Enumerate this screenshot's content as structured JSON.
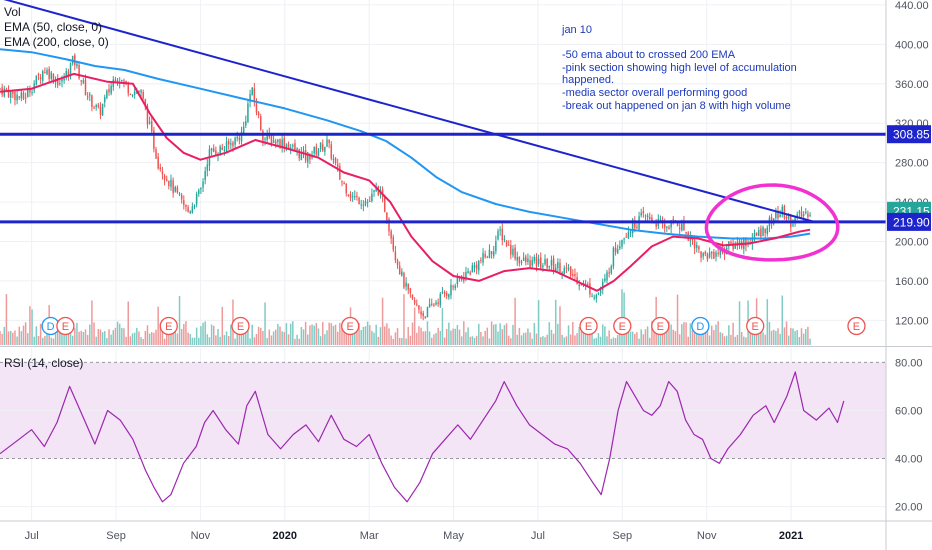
{
  "chart_data": [
    {
      "type": "line",
      "panel": "price",
      "legend": [
        "Vol",
        "EMA (50, close, 0)",
        "EMA (200, close, 0)"
      ],
      "y_ticks": [
        120,
        160,
        200,
        240,
        280,
        320,
        360,
        400,
        440
      ],
      "ylim": [
        95,
        445
      ],
      "x_tick_labels": [
        "Jul",
        "Sep",
        "Nov",
        "2020",
        "Mar",
        "May",
        "Jul",
        "Sep",
        "Nov",
        "2021"
      ],
      "x_tick_months": [
        0,
        2,
        4,
        6,
        8,
        10,
        12,
        14,
        16,
        18
      ],
      "x_tick_bold": [
        false,
        false,
        false,
        true,
        false,
        false,
        false,
        false,
        false,
        true
      ],
      "xlim_months": [
        -0.75,
        20.25
      ],
      "price_labels": [
        {
          "text": "308.85",
          "value": 308.85,
          "color": "#1d24cc"
        },
        {
          "text": "231.15",
          "value": 231.15,
          "color": "#26a69a"
        },
        {
          "text": "219.90",
          "value": 219.9,
          "color": "#1d24cc"
        }
      ],
      "horizontal_lines": [
        {
          "value": 308.85,
          "color": "#1d24cc"
        },
        {
          "value": 219.9,
          "color": "#1d24cc"
        }
      ],
      "trend_line": {
        "from": [
          -0.75,
          447
        ],
        "to": [
          18.55,
          219.9
        ],
        "color": "#1d24cc"
      },
      "series": [
        {
          "type": "candlestick",
          "up_color": "#26a69a",
          "down_color": "#ef5350",
          "close_anchors": [
            [
              -0.75,
              355
            ],
            [
              -0.2,
              345
            ],
            [
              0.3,
              375
            ],
            [
              0.7,
              360
            ],
            [
              1.0,
              385
            ],
            [
              1.3,
              350
            ],
            [
              1.6,
              330
            ],
            [
              2.0,
              370
            ],
            [
              2.3,
              355
            ],
            [
              2.6,
              350
            ],
            [
              3.0,
              280
            ],
            [
              3.4,
              250
            ],
            [
              3.7,
              230
            ],
            [
              4.0,
              250
            ],
            [
              4.2,
              290
            ],
            [
              4.6,
              295
            ],
            [
              5.0,
              310
            ],
            [
              5.2,
              355
            ],
            [
              5.5,
              305
            ],
            [
              6.0,
              300
            ],
            [
              6.5,
              285
            ],
            [
              7.0,
              300
            ],
            [
              7.3,
              265
            ],
            [
              7.6,
              245
            ],
            [
              8.0,
              240
            ],
            [
              8.2,
              255
            ],
            [
              8.4,
              230
            ],
            [
              8.6,
              190
            ],
            [
              8.8,
              160
            ],
            [
              9.0,
              140
            ],
            [
              9.3,
              125
            ],
            [
              9.6,
              140
            ],
            [
              10.0,
              155
            ],
            [
              10.5,
              175
            ],
            [
              10.9,
              190
            ],
            [
              11.1,
              210
            ],
            [
              11.3,
              195
            ],
            [
              11.6,
              180
            ],
            [
              12.0,
              178
            ],
            [
              12.5,
              175
            ],
            [
              13.0,
              160
            ],
            [
              13.4,
              145
            ],
            [
              13.6,
              160
            ],
            [
              13.8,
              190
            ],
            [
              14.0,
              205
            ],
            [
              14.2,
              215
            ],
            [
              14.5,
              225
            ],
            [
              14.7,
              222
            ],
            [
              15.0,
              215
            ],
            [
              15.3,
              220
            ],
            [
              15.6,
              205
            ],
            [
              15.9,
              185
            ],
            [
              16.3,
              190
            ],
            [
              16.7,
              198
            ],
            [
              17.0,
              200
            ],
            [
              17.3,
              210
            ],
            [
              17.6,
              225
            ],
            [
              17.8,
              230
            ],
            [
              18.0,
              220
            ],
            [
              18.2,
              225
            ],
            [
              18.45,
              231.15
            ]
          ]
        },
        {
          "name": "EMA (50, close, 0)",
          "color": "#e91e63",
          "points": [
            [
              -0.75,
              352
            ],
            [
              0,
              355
            ],
            [
              1.0,
              370
            ],
            [
              1.8,
              362
            ],
            [
              2.4,
              360
            ],
            [
              2.8,
              330
            ],
            [
              3.2,
              305
            ],
            [
              3.6,
              290
            ],
            [
              4.0,
              283
            ],
            [
              4.6,
              290
            ],
            [
              5.3,
              303
            ],
            [
              6.0,
              295
            ],
            [
              6.8,
              285
            ],
            [
              7.4,
              270
            ],
            [
              8.0,
              262
            ],
            [
              8.5,
              240
            ],
            [
              9.0,
              205
            ],
            [
              9.5,
              180
            ],
            [
              10.0,
              165
            ],
            [
              10.6,
              160
            ],
            [
              11.2,
              170
            ],
            [
              11.8,
              173
            ],
            [
              12.4,
              170
            ],
            [
              13.0,
              158
            ],
            [
              13.4,
              150
            ],
            [
              13.8,
              160
            ],
            [
              14.2,
              175
            ],
            [
              14.7,
              195
            ],
            [
              15.2,
              205
            ],
            [
              15.8,
              203
            ],
            [
              16.4,
              196
            ],
            [
              17.0,
              198
            ],
            [
              17.6,
              203
            ],
            [
              18.2,
              210
            ],
            [
              18.45,
              212
            ]
          ]
        },
        {
          "name": "EMA (200, close, 0)",
          "color": "#2196f3",
          "points": [
            [
              -0.75,
              395
            ],
            [
              0,
              392
            ],
            [
              0.8,
              385
            ],
            [
              1.5,
              378
            ],
            [
              2.2,
              374
            ],
            [
              3.0,
              365
            ],
            [
              4.0,
              355
            ],
            [
              5.0,
              345
            ],
            [
              6.0,
              335
            ],
            [
              7.0,
              323
            ],
            [
              7.8,
              312
            ],
            [
              8.4,
              302
            ],
            [
              9.0,
              285
            ],
            [
              9.6,
              265
            ],
            [
              10.2,
              250
            ],
            [
              11.0,
              238
            ],
            [
              11.8,
              230
            ],
            [
              12.6,
              224
            ],
            [
              13.4,
              218
            ],
            [
              14.2,
              212
            ],
            [
              15.0,
              208
            ],
            [
              15.8,
              205
            ],
            [
              16.6,
              203
            ],
            [
              17.4,
              203
            ],
            [
              18.0,
              205
            ],
            [
              18.45,
              208
            ]
          ]
        }
      ],
      "volume_bars": {
        "colors": [
          "#ef9a9a",
          "#80cbc4"
        ],
        "seed": 7,
        "floor_value": 95
      },
      "event_badges": [
        {
          "text": "D",
          "month": 0.45,
          "color": "#2196f3"
        },
        {
          "text": "E",
          "month": 0.8,
          "color": "#ef5350"
        },
        {
          "text": "E",
          "month": 3.25,
          "color": "#ef5350"
        },
        {
          "text": "E",
          "month": 4.95,
          "color": "#ef5350"
        },
        {
          "text": "E",
          "month": 7.55,
          "color": "#ef5350"
        },
        {
          "text": "E",
          "month": 13.2,
          "color": "#ef5350"
        },
        {
          "text": "E",
          "month": 14.0,
          "color": "#ef5350"
        },
        {
          "text": "E",
          "month": 14.9,
          "color": "#ef5350"
        },
        {
          "text": "D",
          "month": 15.85,
          "color": "#2196f3"
        },
        {
          "text": "E",
          "month": 17.15,
          "color": "#ef5350"
        },
        {
          "text": "E",
          "month": 19.55,
          "color": "#ef5350"
        }
      ],
      "highlight_ellipse": {
        "center": [
          17.55,
          218
        ],
        "radius_months": 1.55,
        "radius_value": 38,
        "color": "#f032d0"
      }
    },
    {
      "type": "line",
      "panel": "rsi",
      "legend": "RSI (14, close)",
      "y_ticks": [
        20,
        40,
        60,
        80
      ],
      "y_tick_labels": [
        "20.00",
        "40.00",
        "60.00",
        "80.00"
      ],
      "ylim": [
        14,
        86
      ],
      "band": [
        40,
        80
      ],
      "band_color": "#f3e5f5",
      "series": [
        {
          "name": "RSI (14, close)",
          "color": "#9c27b0",
          "points": [
            [
              -0.75,
              42
            ],
            [
              -0.3,
              48
            ],
            [
              0,
              52
            ],
            [
              0.3,
              45
            ],
            [
              0.6,
              55
            ],
            [
              0.9,
              70
            ],
            [
              1.2,
              58
            ],
            [
              1.5,
              46
            ],
            [
              1.8,
              60
            ],
            [
              2.1,
              56
            ],
            [
              2.4,
              48
            ],
            [
              2.7,
              35
            ],
            [
              2.9,
              28
            ],
            [
              3.1,
              22
            ],
            [
              3.3,
              25
            ],
            [
              3.6,
              38
            ],
            [
              3.9,
              45
            ],
            [
              4.1,
              55
            ],
            [
              4.3,
              60
            ],
            [
              4.6,
              52
            ],
            [
              4.9,
              46
            ],
            [
              5.1,
              62
            ],
            [
              5.3,
              68
            ],
            [
              5.6,
              50
            ],
            [
              5.9,
              44
            ],
            [
              6.2,
              50
            ],
            [
              6.5,
              54
            ],
            [
              6.8,
              47
            ],
            [
              7.1,
              58
            ],
            [
              7.4,
              48
            ],
            [
              7.7,
              45
            ],
            [
              8.0,
              50
            ],
            [
              8.3,
              38
            ],
            [
              8.6,
              28
            ],
            [
              8.9,
              22
            ],
            [
              9.2,
              30
            ],
            [
              9.5,
              42
            ],
            [
              9.8,
              48
            ],
            [
              10.1,
              54
            ],
            [
              10.4,
              48
            ],
            [
              10.7,
              56
            ],
            [
              11.0,
              64
            ],
            [
              11.2,
              72
            ],
            [
              11.5,
              62
            ],
            [
              11.8,
              54
            ],
            [
              12.1,
              50
            ],
            [
              12.4,
              46
            ],
            [
              12.7,
              44
            ],
            [
              13.0,
              38
            ],
            [
              13.3,
              30
            ],
            [
              13.5,
              25
            ],
            [
              13.7,
              40
            ],
            [
              13.9,
              60
            ],
            [
              14.1,
              72
            ],
            [
              14.3,
              66
            ],
            [
              14.5,
              60
            ],
            [
              14.7,
              58
            ],
            [
              14.9,
              62
            ],
            [
              15.1,
              72
            ],
            [
              15.3,
              68
            ],
            [
              15.5,
              56
            ],
            [
              15.7,
              50
            ],
            [
              15.9,
              48
            ],
            [
              16.1,
              40
            ],
            [
              16.3,
              38
            ],
            [
              16.5,
              44
            ],
            [
              16.8,
              50
            ],
            [
              17.1,
              58
            ],
            [
              17.4,
              62
            ],
            [
              17.6,
              55
            ],
            [
              17.9,
              66
            ],
            [
              18.1,
              76
            ],
            [
              18.3,
              60
            ],
            [
              18.6,
              56
            ],
            [
              18.9,
              61
            ],
            [
              19.1,
              55
            ],
            [
              19.25,
              64
            ]
          ]
        }
      ]
    }
  ],
  "annotation": {
    "title": "jan 10",
    "lines": [
      "-50 ema about to crossed 200 EMA",
      "-pink section showing high level of accumulation",
      "happened.",
      "-media sector overall performing good",
      "-break out happened on jan 8 with high volume"
    ]
  }
}
